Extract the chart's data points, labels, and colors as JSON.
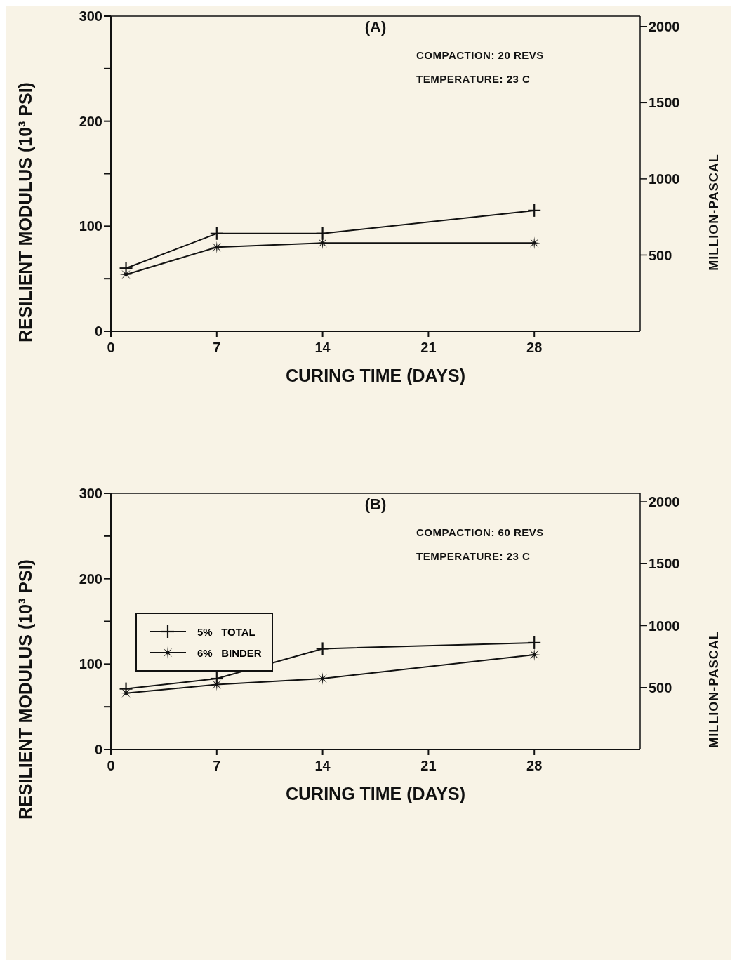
{
  "chart_data": [
    {
      "type": "line",
      "annotations": [
        "(A)",
        "COMPACTION: 20 REVS",
        "TEMPERATURE: 23 C"
      ],
      "xlabel": "CURING TIME (DAYS)",
      "ylabel": "RESILIENT MODULUS (10³ PSI)",
      "y2label": "MILLION-PASCAL",
      "x": [
        1,
        7,
        14,
        28
      ],
      "series": [
        {
          "color": "#111111",
          "marker": "cross",
          "values": [
            60,
            93,
            93,
            115
          ]
        },
        {
          "color": "#111111",
          "marker": "star",
          "values": [
            54,
            80,
            84,
            84
          ]
        }
      ],
      "xlim": [
        0,
        35
      ],
      "xticks": [
        0,
        7,
        14,
        21,
        28
      ],
      "ylim": [
        0,
        300
      ],
      "yticks": [
        0,
        {
          "value": 50,
          "label": null
        },
        100,
        {
          "value": 150,
          "label": null
        },
        200,
        {
          "value": 250,
          "label": null
        },
        300
      ],
      "y2lim": [
        0,
        2068
      ],
      "y2ticks": [
        500,
        1000,
        1500,
        2000
      ],
      "legend": false,
      "grid": false
    },
    {
      "type": "line",
      "annotations": [
        "(B)",
        "COMPACTION: 60 REVS",
        "TEMPERATURE: 23 C"
      ],
      "xlabel": "CURING TIME (DAYS)",
      "ylabel": "RESILIENT MODULUS (10³ PSI)",
      "y2label": "MILLION-PASCAL",
      "x": [
        1,
        7,
        14,
        28
      ],
      "series": [
        {
          "name": "5%   TOTAL",
          "color": "#111111",
          "marker": "cross",
          "values": [
            71,
            83,
            118,
            125
          ]
        },
        {
          "name": "6%   BINDER",
          "color": "#111111",
          "marker": "star",
          "values": [
            66,
            76,
            83,
            111
          ]
        }
      ],
      "xlim": [
        0,
        35
      ],
      "xticks": [
        0,
        7,
        14,
        21,
        28
      ],
      "ylim": [
        0,
        300
      ],
      "yticks": [
        0,
        {
          "value": 50,
          "label": null
        },
        100,
        {
          "value": 150,
          "label": null
        },
        200,
        {
          "value": 250,
          "label": null
        },
        300
      ],
      "y2lim": [
        0,
        2068
      ],
      "y2ticks": [
        500,
        1000,
        1500,
        2000
      ],
      "legend": "left",
      "grid": false
    }
  ]
}
